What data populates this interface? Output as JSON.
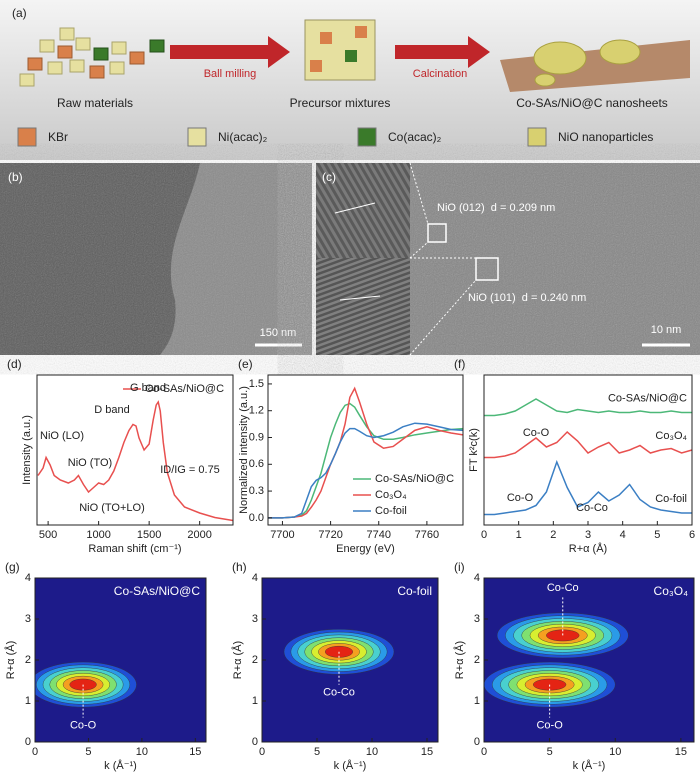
{
  "panel_a": {
    "label": "(a)",
    "steps": [
      "Ball milling",
      "Calcination"
    ],
    "stages": [
      "Raw materials",
      "Precursor mixtures",
      "Co-SAs/NiO@C nanosheets"
    ],
    "legend": [
      {
        "name": "KBr",
        "color": "#d9804a"
      },
      {
        "name": "Ni(acac)₂",
        "color": "#e6e0a0"
      },
      {
        "name": "Co(acac)₂",
        "color": "#3a7a2a"
      },
      {
        "name": "NiO nanoparticles",
        "color": "#d8d070"
      }
    ]
  },
  "panel_b": {
    "label": "(b)",
    "scale_bar": "150 nm"
  },
  "panel_c": {
    "label": "(c)",
    "annotations": [
      "NiO (012)  d = 0.209 nm",
      "NiO (101)  d = 0.240 nm"
    ],
    "scale_bar": "10 nm"
  },
  "chart_data": [
    {
      "type": "line",
      "panel": "(d)",
      "xlabel": "Raman shift (cm⁻¹)",
      "ylabel": "Intensity (a.u.)",
      "xlim": [
        390,
        2330
      ],
      "ylim": [
        0,
        1
      ],
      "xticks": [
        500,
        1000,
        1500,
        2000
      ],
      "legend": "top-right",
      "annotations": [
        "NiO (LO)",
        "NiO (TO)",
        "NiO (TO+LO)",
        "D band",
        "G band",
        "ID/IG = 0.75"
      ],
      "x": [
        400,
        450,
        480,
        520,
        560,
        620,
        700,
        760,
        800,
        850,
        900,
        950,
        1000,
        1050,
        1100,
        1150,
        1200,
        1250,
        1300,
        1340,
        1370,
        1400,
        1450,
        1500,
        1540,
        1570,
        1590,
        1610,
        1640,
        1680,
        1750,
        1850,
        2000,
        2150,
        2330
      ],
      "series": [
        {
          "name": "Co-SAs/NiO@C",
          "color": "#e8504f",
          "values": [
            0.33,
            0.38,
            0.45,
            0.4,
            0.33,
            0.3,
            0.28,
            0.3,
            0.33,
            0.27,
            0.22,
            0.25,
            0.28,
            0.27,
            0.3,
            0.36,
            0.45,
            0.55,
            0.63,
            0.67,
            0.66,
            0.58,
            0.5,
            0.54,
            0.7,
            0.8,
            0.82,
            0.76,
            0.55,
            0.35,
            0.2,
            0.12,
            0.08,
            0.05,
            0.03
          ]
        }
      ]
    },
    {
      "type": "line",
      "panel": "(e)",
      "xlabel": "Energy (eV)",
      "ylabel": "Normalized intensity (a.u.)",
      "xlim": [
        7694,
        7775
      ],
      "ylim": [
        -0.08,
        1.6
      ],
      "xticks": [
        7700,
        7720,
        7740,
        7760
      ],
      "yticks": [
        {
          "value": 0,
          "label": "0.0"
        },
        0.3,
        0.6,
        0.9,
        1.2,
        1.5
      ],
      "legend": "bottom-right",
      "x": [
        7694,
        7700,
        7705,
        7708,
        7710,
        7712,
        7714,
        7716,
        7718,
        7720,
        7722,
        7724,
        7726,
        7728,
        7730,
        7732,
        7735,
        7738,
        7742,
        7746,
        7750,
        7755,
        7760,
        7765,
        7770,
        7775
      ],
      "series": [
        {
          "name": "Co-SAs/NiO@C",
          "color": "#4cb878",
          "values": [
            0,
            0,
            0.01,
            0.03,
            0.08,
            0.2,
            0.35,
            0.5,
            0.7,
            0.9,
            1.05,
            1.18,
            1.26,
            1.28,
            1.24,
            1.15,
            1.02,
            0.92,
            0.88,
            0.88,
            0.9,
            0.93,
            0.95,
            0.97,
            0.99,
            1.0
          ]
        },
        {
          "name": "Co₃O₄",
          "color": "#e8504f",
          "values": [
            0,
            0,
            0.01,
            0.02,
            0.05,
            0.12,
            0.2,
            0.3,
            0.45,
            0.6,
            0.72,
            0.85,
            1.05,
            1.35,
            1.45,
            1.3,
            1.05,
            0.85,
            0.78,
            0.8,
            0.88,
            0.98,
            1.02,
            0.98,
            0.95,
            0.93
          ]
        },
        {
          "name": "Co-foil",
          "color": "#3b7fc4",
          "values": [
            0,
            0,
            0.01,
            0.05,
            0.2,
            0.35,
            0.42,
            0.45,
            0.5,
            0.6,
            0.72,
            0.85,
            0.95,
            1.0,
            1.0,
            0.97,
            0.92,
            0.9,
            0.92,
            0.96,
            1.02,
            1.06,
            1.05,
            1.02,
            0.99,
            0.98
          ]
        }
      ]
    },
    {
      "type": "line",
      "panel": "(f)",
      "xlabel": "R+α (Å)",
      "ylabel": "FT k²c(k)",
      "xlim": [
        0,
        6
      ],
      "ylim": [
        0,
        1
      ],
      "xticks": [
        0,
        1,
        2,
        3,
        4,
        5,
        6
      ],
      "legend": "curve-labels",
      "annotations": [
        "Co-O",
        "Co-O",
        "Co-Co"
      ],
      "x": [
        0,
        0.3,
        0.6,
        0.9,
        1.2,
        1.5,
        1.8,
        2.1,
        2.4,
        2.7,
        3.0,
        3.3,
        3.6,
        3.9,
        4.2,
        4.5,
        4.8,
        5.1,
        5.4,
        5.7,
        6.0
      ],
      "series": [
        {
          "name": "Co-SAs/NiO@C",
          "color": "#4cb878",
          "values": [
            0.73,
            0.73,
            0.74,
            0.76,
            0.8,
            0.84,
            0.8,
            0.76,
            0.75,
            0.77,
            0.76,
            0.75,
            0.76,
            0.75,
            0.75,
            0.76,
            0.75,
            0.75,
            0.76,
            0.75,
            0.75
          ]
        },
        {
          "name": "Co₃O₄",
          "color": "#e8504f",
          "values": [
            0.45,
            0.45,
            0.46,
            0.48,
            0.53,
            0.58,
            0.52,
            0.55,
            0.62,
            0.56,
            0.48,
            0.52,
            0.55,
            0.48,
            0.5,
            0.53,
            0.48,
            0.5,
            0.51,
            0.48,
            0.5
          ]
        },
        {
          "name": "Co-foil",
          "color": "#3b7fc4",
          "values": [
            0.07,
            0.07,
            0.08,
            0.09,
            0.1,
            0.13,
            0.22,
            0.42,
            0.25,
            0.12,
            0.15,
            0.22,
            0.16,
            0.2,
            0.27,
            0.17,
            0.12,
            0.1,
            0.09,
            0.08,
            0.08
          ]
        }
      ]
    },
    {
      "type": "contour",
      "panel": "(g)",
      "title": "Co-SAs/NiO@C",
      "xlabel": "k (Å⁻¹)",
      "ylabel": "R+α (Å)",
      "xlim": [
        0,
        16
      ],
      "ylim": [
        0,
        4
      ],
      "xticks": [
        0,
        5,
        10,
        15
      ],
      "yticks": [
        0,
        1,
        2,
        3,
        4
      ],
      "peaks": [
        {
          "label": "Co-O",
          "k": 4.5,
          "r": 1.4
        }
      ]
    },
    {
      "type": "contour",
      "panel": "(h)",
      "title": "Co-foil",
      "xlabel": "k (Å⁻¹)",
      "ylabel": "R+α (Å)",
      "xlim": [
        0,
        16
      ],
      "ylim": [
        0,
        4
      ],
      "xticks": [
        0,
        5,
        10,
        15
      ],
      "yticks": [
        0,
        1,
        2,
        3,
        4
      ],
      "peaks": [
        {
          "label": "Co-Co",
          "k": 7,
          "r": 2.2
        }
      ]
    },
    {
      "type": "contour",
      "panel": "(i)",
      "title": "Co₃O₄",
      "xlabel": "k (Å⁻¹)",
      "ylabel": "R+α (Å)",
      "xlim": [
        0,
        16
      ],
      "ylim": [
        0,
        4
      ],
      "xticks": [
        0,
        5,
        10,
        15
      ],
      "yticks": [
        0,
        1,
        2,
        3,
        4
      ],
      "peaks": [
        {
          "label": "Co-Co",
          "k": 6,
          "r": 2.6
        },
        {
          "label": "Co-O",
          "k": 5,
          "r": 1.4
        }
      ]
    }
  ]
}
